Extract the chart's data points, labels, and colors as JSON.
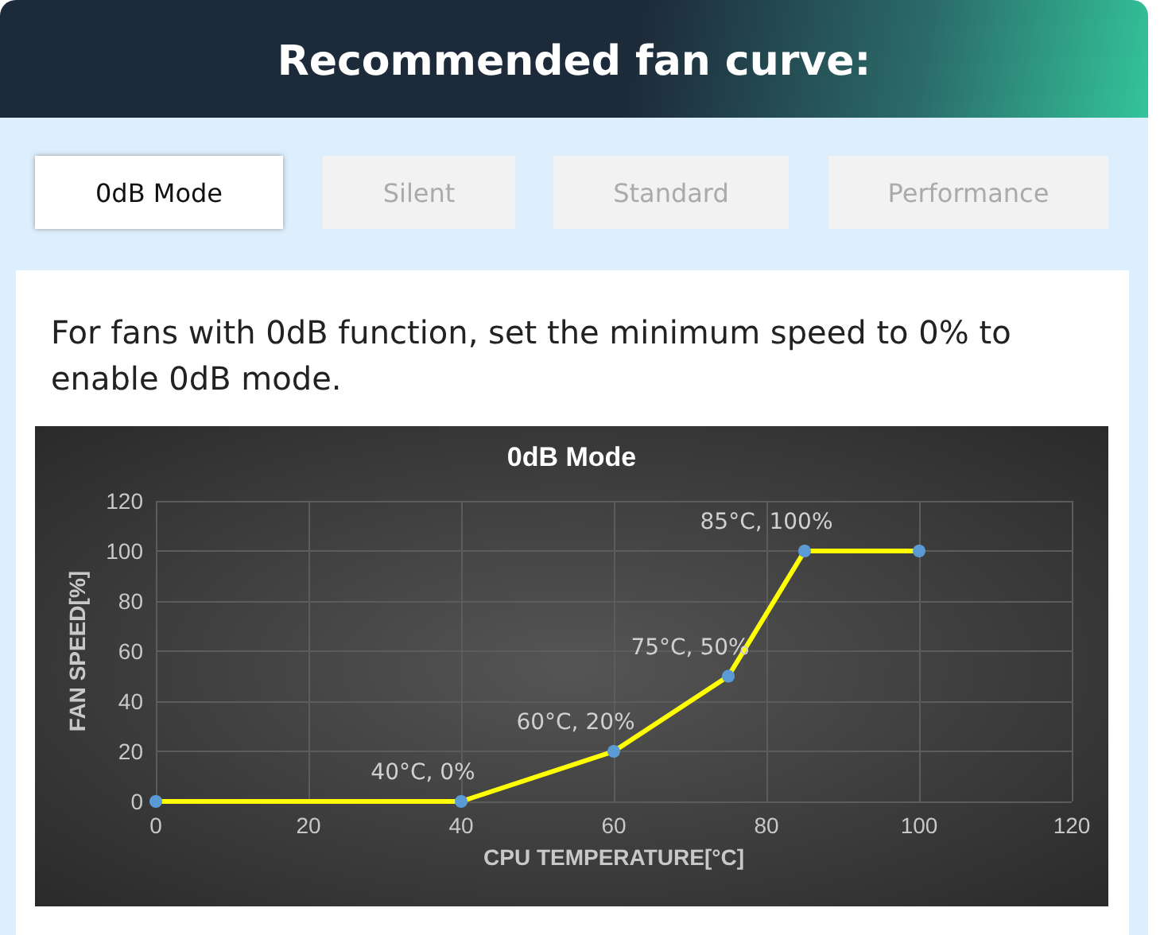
{
  "chart_data": {
    "type": "line",
    "title": "0dB Mode",
    "xlabel": "CPU TEMPERATURE[°C]",
    "ylabel": "FAN SPEED[%]",
    "annotations": [
      "Recommended fan curve:",
      "0dB Mode",
      "Silent",
      "Standard",
      "Performance",
      "For fans with 0dB function, set the minimum speed to 0% to enable 0dB mode."
    ],
    "x": [
      0,
      40,
      60,
      75,
      85,
      100
    ],
    "series": [
      {
        "color": "#ffff00",
        "values": [
          0,
          0,
          20,
          50,
          100,
          100
        ],
        "value_labels": [
          null,
          "40°C, 0%",
          "60°C, 20%",
          "75°C, 50%",
          "85°C, 100%",
          null
        ]
      }
    ],
    "xlim": [
      0,
      120
    ],
    "xticks": [
      0,
      20,
      40,
      60,
      80,
      100,
      120
    ],
    "ylim": [
      0,
      120
    ],
    "yticks": [
      0,
      20,
      40,
      60,
      80,
      100,
      120
    ],
    "grid": true,
    "marker": "circle",
    "line_style": "solid"
  }
}
